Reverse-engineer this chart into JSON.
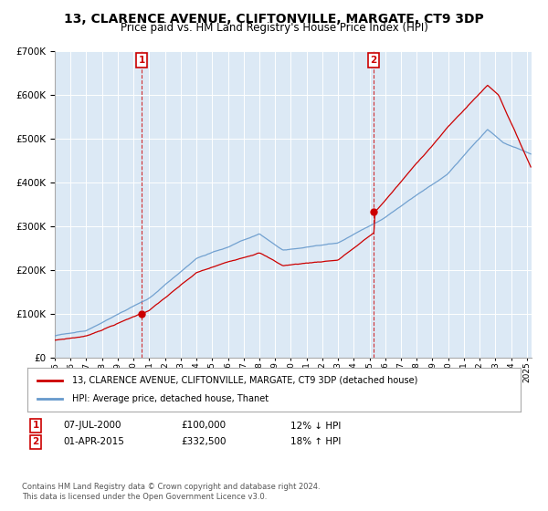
{
  "title": "13, CLARENCE AVENUE, CLIFTONVILLE, MARGATE, CT9 3DP",
  "subtitle": "Price paid vs. HM Land Registry's House Price Index (HPI)",
  "title_fontsize": 10,
  "subtitle_fontsize": 8.5,
  "background_color": "#ffffff",
  "plot_bg_color": "#dce9f5",
  "grid_color": "#ffffff",
  "sale1_year": 2000.52,
  "sale1_price": 100000,
  "sale1_label": "07-JUL-2000",
  "sale1_hpi_text": "12% ↓ HPI",
  "sale2_year": 2015.25,
  "sale2_price": 332500,
  "sale2_label": "01-APR-2015",
  "sale2_hpi_text": "18% ↑ HPI",
  "property_label": "13, CLARENCE AVENUE, CLIFTONVILLE, MARGATE, CT9 3DP (detached house)",
  "hpi_label": "HPI: Average price, detached house, Thanet",
  "property_color": "#cc0000",
  "hpi_color": "#6699cc",
  "vline_color": "#cc0000",
  "footnote": "Contains HM Land Registry data © Crown copyright and database right 2024.\nThis data is licensed under the Open Government Licence v3.0.",
  "ylim": [
    0,
    700000
  ],
  "yticks": [
    0,
    100000,
    200000,
    300000,
    400000,
    500000,
    600000,
    700000
  ],
  "xmin": 1995.0,
  "xmax": 2025.3
}
